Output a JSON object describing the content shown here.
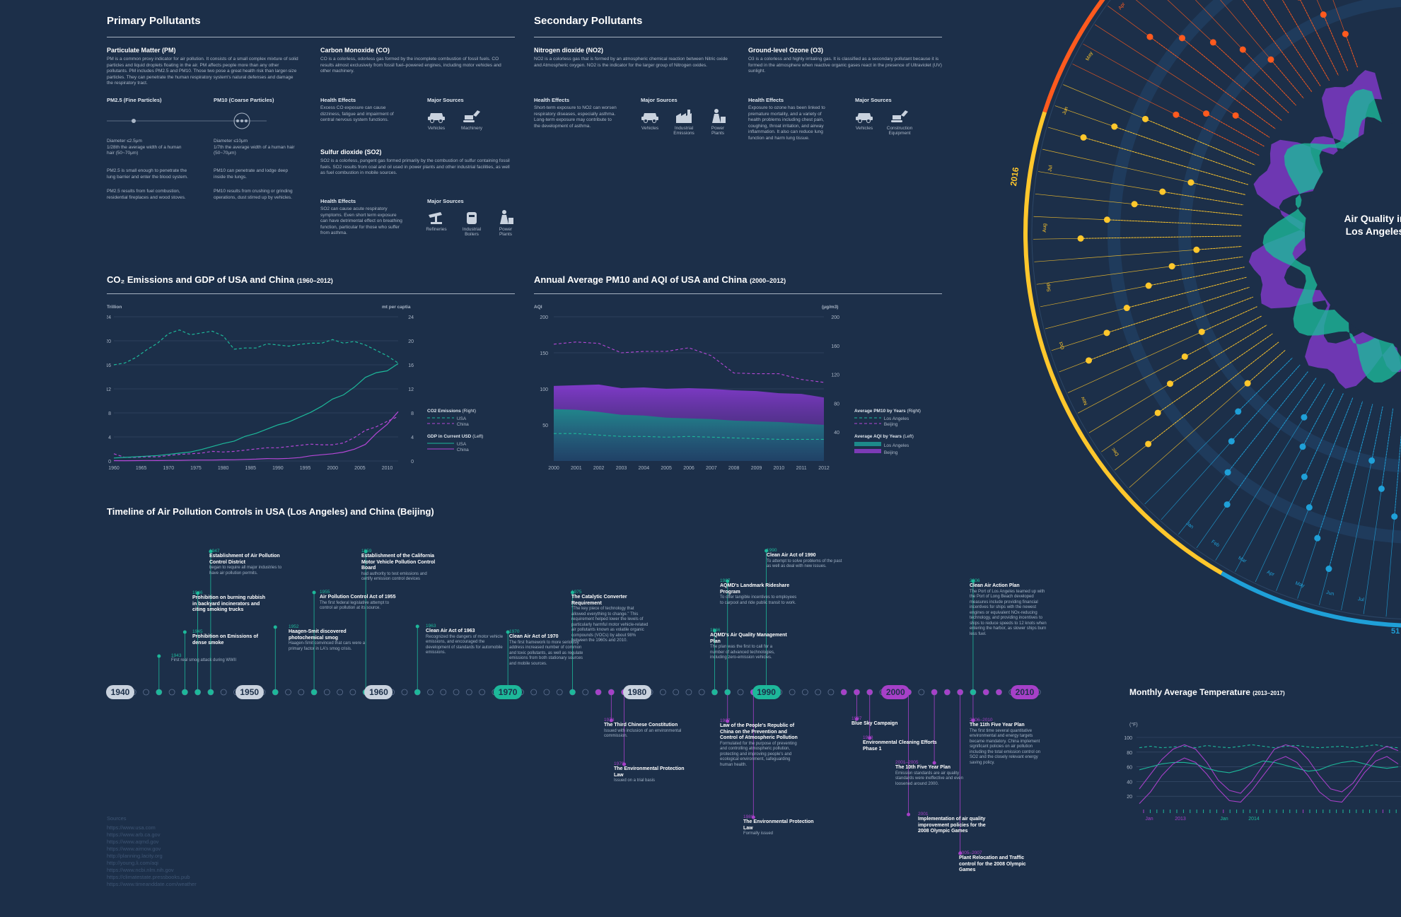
{
  "primary": {
    "title": "Primary Pollutants",
    "pm": {
      "title": "Particulate Matter (PM)",
      "text": "PM is a common proxy indicator for air pollution. It consists of a small complex mixture of solid particles and liquid droplets floating in the air. PM affects people more than any other pollutants. PM includes PM2.5 and PM10. Those two pose a great health risk than larger-size particles. They can penetrate the human respiratory system's natural defenses and damage the respiratory tract.",
      "fine_title": "PM2.5 (Fine Particles)",
      "coarse_title": "PM10 (Coarse Particles)",
      "fine_diam": "Diameter ≤2.5μm\n1/28th the average width of a human hair (50~70μm)",
      "coarse_diam": "Diameter ≤10μm\n1/7th the average width of a human hair (50~70μm)",
      "fine_1": "PM2.5 is small enough to penetrate the lung barrier and enter the blood system.",
      "fine_2": "PM2.5 results from fuel combustion, residential fireplaces and wood stoves.",
      "coarse_1": "PM10 can penetrate and lodge deep inside the lungs.",
      "coarse_2": "PM10 results from crushing or grinding operations, dust stirred up by vehicles."
    },
    "co": {
      "title": "Carbon Monoxide (CO)",
      "text": "CO is a colorless, odorless gas formed by the incomplete combustion of fossil fuels. CO results almost exclusively from fossil fuel–powered engines, including motor vehicles and other machinery.",
      "health_h": "Health Effects",
      "health": "Excess CO exposure can cause dizziness, fatigue and impairment of central nervous system functions.",
      "src_h": "Major Sources",
      "src1": "Vehicles",
      "src2": "Machinery"
    },
    "so2": {
      "title": "Sulfur dioxide (SO2)",
      "text": "SO2 is a colorless, pungent gas formed primarily by the combustion of sulfur containing fossil fuels. SO2 results from coal and oil used in power plants and other industrial facilities, as well as fuel combustion in mobile sources.",
      "health_h": "Health Effects",
      "health": "SO2 can cause acute respiratory symptoms. Even short term exposure can have detrimental effect on breathing function, particular for those who suffer from asthma.",
      "src_h": "Major Sources",
      "src1": "Refineries",
      "src2": "Industrial Boilers",
      "src3": "Power Plants"
    }
  },
  "secondary": {
    "title": "Secondary  Pollutants",
    "no2": {
      "title": "Nitrogen dioxide (NO2)",
      "text": "NO2 is a colorless gas that is formed by an atmospheric chemical reaction between Nitric oxide and Atmospheric oxygen. NO2 is the indicator for the larger group of Nitrogen oxides.",
      "health_h": "Health Effects",
      "health": "Short-term exposure to NO2 can worsen respiratory diseases, especially asthma. Long-term exposure may contribute to the development of asthma.",
      "src_h": "Major Sources",
      "src1": "Vehicles",
      "src2": "Industrial Emissions",
      "src3": "Power Plants"
    },
    "o3": {
      "title": "Ground-level Ozone (O3)",
      "text": "O3 is a colorless and highly irritating gas. It is classified as a secondary pollutant because it is formed in the atmosphere when reactive organic gases react in the presence of Ultraviolet (UV) sunlight.",
      "health_h": "Health Effects",
      "health": "Exposure to ozone has been linked to premature mortality, and a variety of health problems including chest pain, coughing, throat irritation, and airway inflammation. It also can reduce lung function and harm lung tissue.",
      "src_h": "Major Sources",
      "src1": "Vehicles",
      "src2": "Construction Equipment"
    }
  },
  "co2chart": {
    "title": "CO₂ Emissions and GDP of USA and China",
    "title_range": "(1960–2012)",
    "left_unit": "Trillion",
    "right_unit": "mt per captia",
    "legend_co2": "CO2 Emissions",
    "legend_co2_note": "(Right)",
    "legend_gdp": "GDP in Current USD",
    "legend_gdp_note": "(Left)",
    "usa": "USA",
    "china": "China"
  },
  "pmchart": {
    "title": "Annual Average PM10 and AQI of USA and China",
    "title_range": "(2000–2012)",
    "left_unit": "AQI",
    "right_unit": "(μg/m3)",
    "legend_pm": "Average PM10 by Years",
    "legend_pm_note": "(Right)",
    "legend_aqi": "Average AQI by Years",
    "legend_aqi_note": "(Left)",
    "la": "Los Angeles",
    "beijing": "Beijing"
  },
  "chart_data": [
    {
      "type": "line",
      "title": "CO₂ Emissions and GDP of USA and China (1960–2012)",
      "x": [
        1960,
        1962,
        1964,
        1966,
        1968,
        1970,
        1972,
        1974,
        1976,
        1978,
        1980,
        1982,
        1984,
        1986,
        1988,
        1990,
        1992,
        1994,
        1996,
        1998,
        2000,
        2002,
        2004,
        2006,
        2008,
        2010,
        2012
      ],
      "xticks": [
        1960,
        1965,
        1970,
        1975,
        1980,
        1985,
        1990,
        1995,
        2000,
        2005,
        2010
      ],
      "ylim_left": [
        0,
        24
      ],
      "ylim_right": [
        0,
        24
      ],
      "yticks": [
        0,
        4,
        8,
        12,
        16,
        20,
        24
      ],
      "series": [
        {
          "name": "USA",
          "metric": "CO2 Emissions",
          "axis": "right",
          "values": [
            16.0,
            16.3,
            17.2,
            18.5,
            19.6,
            21.2,
            21.8,
            21.0,
            21.3,
            21.6,
            20.8,
            18.6,
            18.8,
            18.8,
            19.5,
            19.3,
            19.1,
            19.4,
            19.6,
            19.6,
            20.2,
            19.6,
            19.9,
            19.3,
            18.4,
            17.5,
            16.3
          ]
        },
        {
          "name": "China",
          "metric": "CO2 Emissions",
          "axis": "right",
          "values": [
            1.2,
            0.6,
            0.6,
            0.7,
            0.7,
            0.9,
            1.1,
            1.2,
            1.3,
            1.6,
            1.5,
            1.6,
            1.8,
            2.0,
            2.2,
            2.2,
            2.4,
            2.6,
            2.8,
            2.7,
            2.7,
            3.0,
            3.9,
            5.1,
            5.7,
            6.6,
            7.4
          ]
        },
        {
          "name": "USA",
          "metric": "GDP in Current USD",
          "axis": "left",
          "values": [
            0.5,
            0.6,
            0.7,
            0.8,
            0.9,
            1.1,
            1.3,
            1.5,
            1.9,
            2.4,
            2.9,
            3.3,
            4.1,
            4.6,
            5.3,
            6.0,
            6.5,
            7.3,
            8.1,
            9.1,
            10.3,
            11.0,
            12.3,
            13.9,
            14.7,
            15.0,
            16.2
          ]
        },
        {
          "name": "China",
          "metric": "GDP in Current USD",
          "axis": "left",
          "values": [
            0.06,
            0.05,
            0.06,
            0.08,
            0.07,
            0.09,
            0.11,
            0.14,
            0.15,
            0.15,
            0.19,
            0.2,
            0.26,
            0.3,
            0.4,
            0.36,
            0.43,
            0.56,
            0.86,
            1.03,
            1.2,
            1.47,
            1.96,
            2.75,
            4.6,
            6.1,
            8.2
          ]
        }
      ]
    },
    {
      "type": "area",
      "title": "Annual Average PM10 and AQI of USA and China (2000–2012)",
      "x": [
        2000,
        2001,
        2002,
        2003,
        2004,
        2005,
        2006,
        2007,
        2008,
        2009,
        2010,
        2011,
        2012
      ],
      "ylim_left": [
        0,
        200
      ],
      "yticks_left": [
        50,
        100,
        150,
        200
      ],
      "ylim_right": [
        0,
        200
      ],
      "yticks_right": [
        40,
        80,
        120,
        160,
        200
      ],
      "series": [
        {
          "name": "Los Angeles",
          "metric": "Average PM10 by Years",
          "axis": "right",
          "values": [
            38,
            38,
            36,
            34,
            34,
            33,
            34,
            33,
            32,
            31,
            30,
            30,
            30
          ]
        },
        {
          "name": "Beijing",
          "metric": "Average PM10 by Years",
          "axis": "right",
          "values": [
            162,
            165,
            163,
            150,
            152,
            152,
            157,
            146,
            122,
            121,
            121,
            113,
            109
          ]
        },
        {
          "name": "Los Angeles",
          "metric": "Average AQI by Years",
          "axis": "left",
          "values": [
            72,
            71,
            68,
            64,
            63,
            60,
            59,
            58,
            56,
            55,
            54,
            52,
            50
          ]
        },
        {
          "name": "Beijing",
          "metric": "Average AQI by Years",
          "axis": "left",
          "values": [
            104,
            105,
            106,
            101,
            102,
            100,
            101,
            100,
            98,
            97,
            94,
            93,
            88
          ]
        }
      ]
    },
    {
      "type": "line",
      "title": "Monthly Average Temperature (2013–2017)",
      "ylabel": "(°F)",
      "ylim": [
        0,
        100
      ],
      "yticks": [
        20,
        40,
        60,
        80,
        100
      ],
      "xticks": [
        "Jan",
        "2013",
        "Jan",
        "2014"
      ],
      "series": [
        {
          "name": "Los Angeles",
          "values": [
            86,
            88,
            86,
            87,
            88,
            86,
            89,
            87,
            86,
            88,
            90,
            88,
            86,
            88,
            89,
            87,
            86,
            87,
            88,
            86,
            88,
            90,
            87,
            86
          ]
        },
        {
          "name": "Beijing",
          "values": [
            30,
            50,
            70,
            84,
            90,
            84,
            66,
            42,
            28,
            24,
            40,
            62,
            84,
            90,
            86,
            70,
            48,
            30,
            26,
            38,
            60,
            80,
            88,
            82
          ]
        },
        {
          "name": "Los Angeles",
          "values": [
            56,
            60,
            64,
            66,
            66,
            64,
            58,
            54,
            52,
            56,
            62,
            68,
            66,
            62,
            58,
            54,
            56,
            62,
            66,
            68,
            64,
            60,
            58,
            60
          ]
        },
        {
          "name": "Beijing",
          "values": [
            10,
            26,
            48,
            64,
            72,
            66,
            50,
            30,
            14,
            12,
            28,
            48,
            68,
            74,
            66,
            48,
            26,
            14,
            12,
            30,
            52,
            68,
            74,
            64
          ]
        }
      ]
    }
  ],
  "timeline": {
    "title": "Timeline of Air Pollution Controls in USA (Los Angeles) and China (Beijing)",
    "decades": [
      "1940",
      "1950",
      "1960",
      "1970",
      "1980",
      "1990",
      "2000",
      "2010"
    ],
    "usa_events": [
      {
        "year": "1943",
        "title": "",
        "desc": "First real smog attack during WWII"
      },
      {
        "year": "1945",
        "title": "Prohibition on Emissions of dense smoke",
        "desc": ""
      },
      {
        "year": "1946",
        "title": "Prohibition on burning rubbish in backyard incinerators and citing smoking trucks",
        "desc": ""
      },
      {
        "year": "1947",
        "title": "Establishment of Air Pollution Control District",
        "desc": "began to require all major industries to have air pollution permits."
      },
      {
        "year": "1952",
        "title": "Haagen-Smit discovered photochemical smog",
        "desc": "Haagen-Smit convinced that cars were a primary factor in LA's smog crisis."
      },
      {
        "year": "1955",
        "title": "Air Pollution Control Act of 1955",
        "desc": "The first federal legislative attempt to control air pollution at its source."
      },
      {
        "year": "1959",
        "title": "Establishment of the California Motor Vehicle Pollution Control Board",
        "desc": "had authority to test emissions and certify emission control devices"
      },
      {
        "year": "1963",
        "title": "Clean Air Act of 1963",
        "desc": "Recognized the dangers of motor vehicle emissions, and encouraged the development of standards for automobile emissions."
      },
      {
        "year": "1970",
        "title": "Clean Air Act of 1970",
        "desc": "The first framework to more seriously address increased number of common and toxic pollutants, as well as regulate emissions from both stationary sources and mobile sources."
      },
      {
        "year": "1975",
        "title": "The Catalytic Converter Requirement",
        "desc": "\"The key piece of technology that allowed everything to change.\" This requirement helped lower the levels of particularly harmful motor vehicle-related air pollutants known as volatile organic compounds (VOCs) by about 98% between the 1960s and 2010."
      },
      {
        "year": "1986",
        "title": "AQMD's Air Quality Management Plan",
        "desc": "The plan was the first to call for a number of advanced technologies, including zero-emission vehicles."
      },
      {
        "year": "1987",
        "title": "AQMD's Landmark Rideshare Program",
        "desc": "To offer tangible incentives to employees to carpool and ride public transit to work."
      },
      {
        "year": "1990",
        "title": "Clean Air Act of 1990",
        "desc": "To attempt to solve problems of the past as well as deal with new issues."
      },
      {
        "year": "2006",
        "title": "Clean Air Action Plan",
        "desc": "The Port of Los Angeles teamed up with the Port of Long Beach developed measures include providing financial incentives for ships with the newest engines or equivalent NOx-reducing technology, and providing incentives to ships to reduce speeds to 12 knots when entering the harbor, as slower ships burn less fuel."
      }
    ],
    "china_events": [
      {
        "year": "1978",
        "title": "The Third Chinese Constitution",
        "desc": "Issued with inclusion of an environmental commission."
      },
      {
        "year": "1979",
        "title": "The Environmental Protection Law",
        "desc": "Issued on a trial basis"
      },
      {
        "year": "1987",
        "title": "Law of the People's Republic of China on the Prevention and Control of Atmospheric Pollution",
        "desc": "Formulated for the purpose of preventing and controlling atmospheric pollution, protecting and improving people's and ecological environment, safeguarding human health."
      },
      {
        "year": "1989",
        "title": "The Environmental Protection Law",
        "desc": "Formally issued"
      },
      {
        "year": "1997",
        "title": "Blue Sky Campaign",
        "desc": ""
      },
      {
        "year": "1998",
        "title": "Environmental Cleaning Efforts Phase 1",
        "desc": ""
      },
      {
        "year": "2001–2005",
        "title": "The 10th Five Year Plan",
        "desc": "Emission standards are air quality standards were ineffective and even loosened around 2000."
      },
      {
        "year": "2001",
        "title": "Implementation of air quality improvement policies for the 2008 Olympic Games",
        "desc": ""
      },
      {
        "year": "2006–2010",
        "title": "The 11th Five Year Plan",
        "desc": "The first time several quantitative environmental and energy targets became mandatory. China implement significant policies on air pollution including the total emission control on SO2 and the closely relevant energy saving policy."
      },
      {
        "year": "2005–2007",
        "title": "Plant Relocation and Traffic control for the 2008 Olympic Games",
        "desc": ""
      }
    ]
  },
  "radial": {
    "title_line1": "Air Quality in",
    "title_line2": "Los Angeles",
    "year_label": "2016",
    "months_left": [
      "Jan",
      "Feb",
      "Mar",
      "Apr",
      "May",
      "Jun",
      "Jul",
      "Aug",
      "Sep",
      "Oct",
      "Nov",
      "Dec"
    ],
    "months_bottom": [
      "Jan",
      "Feb",
      "Mar",
      "Apr",
      "May",
      "Jun",
      "Jul"
    ],
    "bottom_code": "51",
    "colors": {
      "orange": "#ff5a1e",
      "yellow": "#ffc72c",
      "cyan": "#1fa0d8",
      "teal": "#1db89a",
      "purple": "#8a3bd6"
    }
  },
  "temperature": {
    "title": "Monthly Average Temperature",
    "range": "(2013–2017)",
    "unit": "(°F)",
    "yticks": [
      "100",
      "80",
      "60",
      "40",
      "20"
    ],
    "xlabels": [
      "Jan",
      "2013",
      "Jan",
      "2014"
    ]
  },
  "sources": {
    "heading": "Sources",
    "items": [
      "https://www.usa.com",
      "https://www.arb.ca.gov",
      "https://www.aqmd.gov",
      "https://www.airnow.gov",
      "http://planning.lacity.org",
      "http://young.li.com/aqi",
      "https://www.ncbi.nlm.nih.gov",
      "https://climatestate.pressbooks.pub",
      "https://www.timeanddate.com/weather"
    ]
  }
}
